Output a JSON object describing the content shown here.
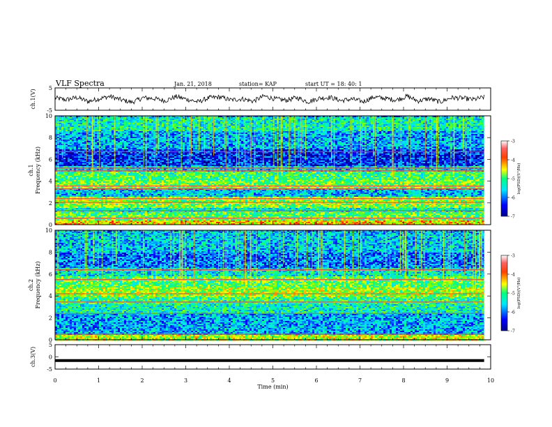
{
  "header": {
    "title": "VLF Spectra",
    "date": "Jan. 21, 2018",
    "station": "station= KAP",
    "start_ut": "start  UT =   18: 40: 1"
  },
  "chart_data": [
    {
      "type": "line",
      "name": "ch1-waveform",
      "ylabel": "ch.1(V)",
      "ylim": [
        -5,
        5
      ],
      "yticks": [
        "5",
        "-5"
      ],
      "xlim": [
        0,
        9.85
      ],
      "description_values": "noisy waveform near 0 V, amplitude about ±3 V",
      "y_sampled": [
        0.8,
        -0.5,
        1.2,
        -1.8,
        0.3,
        2.0,
        -0.6,
        -2.4,
        1.0,
        0.4,
        -1.2,
        1.8,
        -0.2,
        -2.1,
        0.9,
        1.5,
        -0.8,
        0.2,
        -1.6,
        2.2,
        0.1,
        -0.9,
        1.1,
        -2.0,
        0.6,
        1.3,
        -1.1,
        0.0,
        -1.9,
        1.6,
        0.5,
        -0.7,
        2.1,
        -1.4,
        0.3,
        -2.2,
        1.0,
        0.7,
        -0.4,
        1.4
      ]
    },
    {
      "type": "heatmap",
      "name": "ch1-spectrogram",
      "ylabel_top": "ch.1",
      "ylabel": "Frequency (kHz)",
      "ylim": [
        0,
        10
      ],
      "yticks": [
        "0",
        "2",
        "4",
        "6",
        "8",
        "10"
      ],
      "colorbar": {
        "label": "log(PSD)(V²/Hz)",
        "range": [
          -7,
          -3
        ],
        "ticks": [
          "-3",
          "-4",
          "-5",
          "-6",
          "-7"
        ]
      },
      "bands": [
        {
          "from": 0.0,
          "to": 0.4,
          "level": -4.5
        },
        {
          "from": 0.4,
          "to": 1.2,
          "level": -5.2
        },
        {
          "from": 1.2,
          "to": 1.6,
          "level": -5.6
        },
        {
          "from": 1.6,
          "to": 2.6,
          "level": -5.0
        },
        {
          "from": 2.6,
          "to": 3.4,
          "level": -5.9
        },
        {
          "from": 3.4,
          "to": 4.2,
          "level": -5.1
        },
        {
          "from": 4.2,
          "to": 5.0,
          "level": -5.3
        },
        {
          "from": 5.0,
          "to": 5.4,
          "level": -5.8
        },
        {
          "from": 5.4,
          "to": 7.0,
          "level": -6.5
        },
        {
          "from": 7.0,
          "to": 8.6,
          "level": -6.0
        },
        {
          "from": 8.6,
          "to": 10.0,
          "level": -5.6
        }
      ],
      "lines_khz": [
        0.6,
        1.3,
        2.05,
        2.4,
        3.3,
        3.55,
        4.95,
        5.2,
        6.7
      ]
    },
    {
      "type": "heatmap",
      "name": "ch2-spectrogram",
      "ylabel_top": "ch.2",
      "ylabel": "Frequency (kHz)",
      "ylim": [
        0,
        10
      ],
      "yticks": [
        "0",
        "2",
        "4",
        "6",
        "8",
        "10"
      ],
      "colorbar": {
        "label": "log(PSD)(V²/Hz)",
        "range": [
          -7,
          -3
        ],
        "ticks": [
          "-3",
          "-4",
          "-5",
          "-6",
          "-7"
        ]
      },
      "bands": [
        {
          "from": 0.0,
          "to": 0.5,
          "level": -4.8
        },
        {
          "from": 0.5,
          "to": 2.4,
          "level": -6.0
        },
        {
          "from": 2.4,
          "to": 3.3,
          "level": -5.6
        },
        {
          "from": 3.3,
          "to": 4.0,
          "level": -5.4
        },
        {
          "from": 4.0,
          "to": 4.8,
          "level": -4.9
        },
        {
          "from": 4.8,
          "to": 5.8,
          "level": -5.2
        },
        {
          "from": 5.8,
          "to": 6.6,
          "level": -5.7
        },
        {
          "from": 6.6,
          "to": 8.0,
          "level": -6.2
        },
        {
          "from": 8.0,
          "to": 10.0,
          "level": -5.9
        }
      ],
      "lines_khz": [
        0.5,
        2.4,
        3.45,
        4.2,
        5.5,
        6.4
      ]
    },
    {
      "type": "line",
      "name": "ch3-waveform",
      "ylabel": "ch.3(V)",
      "ylim": [
        -5,
        5
      ],
      "yticks": [
        "5",
        "0",
        "-5"
      ],
      "xlim": [
        0,
        9.85
      ],
      "y_sampled": [
        -1.5,
        -1.5
      ]
    }
  ],
  "xaxis": {
    "label": "Time (min)",
    "range": [
      0,
      10
    ],
    "ticks": [
      "0",
      "1",
      "2",
      "3",
      "4",
      "5",
      "6",
      "7",
      "8",
      "9",
      "10"
    ]
  },
  "colors": {
    "colormap": [
      "#00008b",
      "#0000ff",
      "#0080ff",
      "#00e5ff",
      "#00ff80",
      "#80ff00",
      "#ffff00",
      "#ff8000",
      "#ff0000",
      "#ff8080",
      "#ffffff"
    ],
    "trace": "#000000"
  }
}
